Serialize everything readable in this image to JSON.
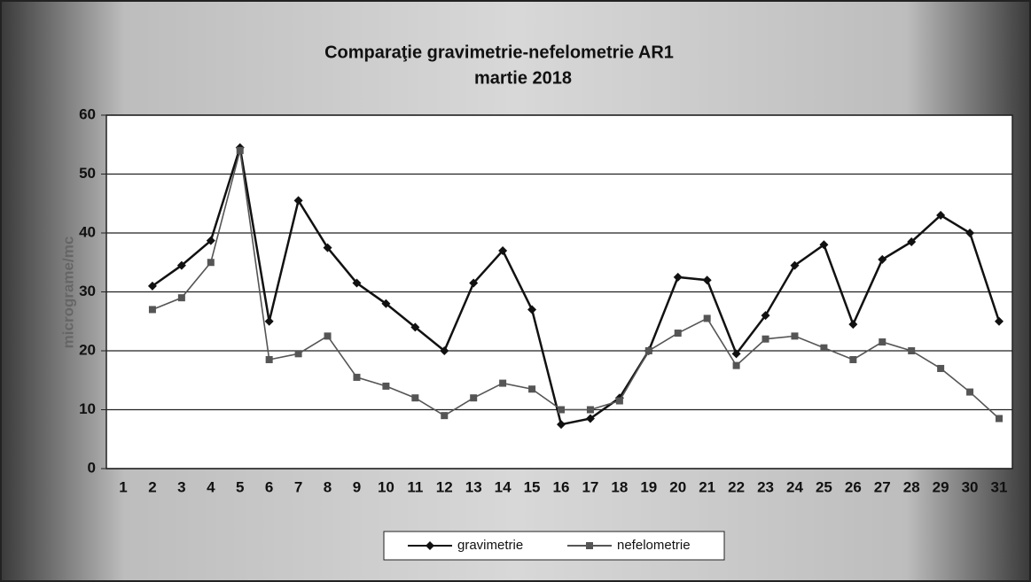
{
  "chart_data": {
    "type": "line",
    "title": "Comparaţie gravimetrie-nefelometrie AR1",
    "subtitle": "martie 2018",
    "y_label": "micrograme/mc",
    "categories": [
      1,
      2,
      3,
      4,
      5,
      6,
      7,
      8,
      9,
      10,
      11,
      12,
      13,
      14,
      15,
      16,
      17,
      18,
      19,
      20,
      21,
      22,
      23,
      24,
      25,
      26,
      27,
      28,
      29,
      30,
      31
    ],
    "series": [
      {
        "name": "gravimetrie",
        "color": "#111111",
        "marker": "diamond",
        "values": [
          null,
          31,
          34.5,
          38.7,
          54.5,
          25,
          45.5,
          37.5,
          31.5,
          28,
          24,
          20,
          31.5,
          37,
          27,
          7.5,
          8.5,
          12,
          20,
          32.5,
          32,
          19.5,
          26,
          34.5,
          38,
          24.5,
          35.5,
          38.5,
          43,
          40,
          25
        ]
      },
      {
        "name": "nefelometrie",
        "color": "#555555",
        "marker": "square",
        "values": [
          null,
          27,
          29,
          35,
          54,
          18.5,
          19.5,
          22.5,
          15.5,
          14,
          12,
          9,
          12,
          14.5,
          13.5,
          10,
          10,
          11.5,
          20,
          23,
          25.5,
          17.5,
          22,
          22.5,
          20.5,
          18.5,
          21.5,
          20,
          17,
          13,
          8.5
        ]
      }
    ],
    "ylim": [
      0,
      60
    ],
    "yticks": [
      0,
      10,
      20,
      30,
      40,
      50,
      60
    ],
    "grid": true
  }
}
